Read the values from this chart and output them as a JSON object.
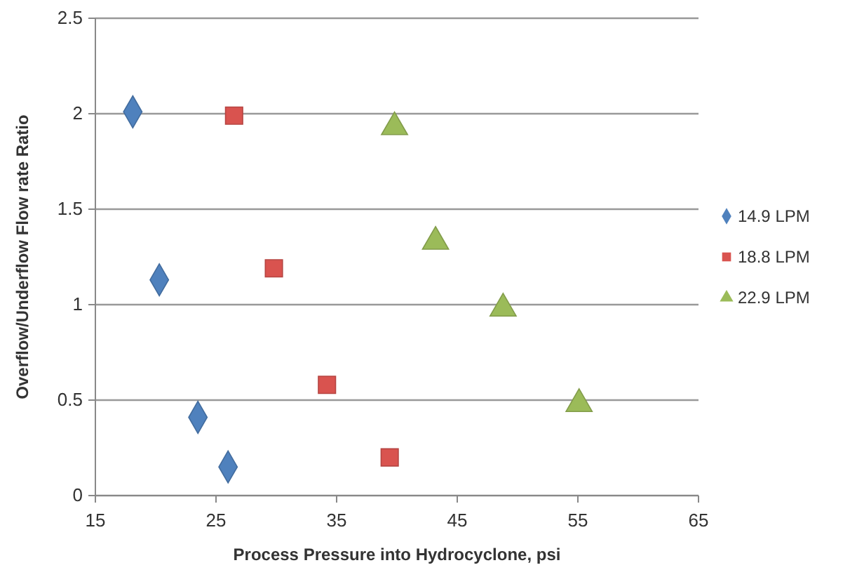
{
  "chart_data": {
    "type": "scatter",
    "xlabel": "Process Pressure into Hydrocyclone, psi",
    "ylabel": "Overflow/Underflow Flow rate Ratio",
    "xlim": [
      15,
      65
    ],
    "xticks": [
      15,
      25,
      35,
      45,
      55,
      65
    ],
    "ylim": [
      0,
      2.5
    ],
    "yticks": [
      0,
      0.5,
      1,
      1.5,
      2,
      2.5
    ],
    "grid": "y",
    "legend": "right",
    "series": [
      {
        "name": "14.9 LPM",
        "color": "#4f81bd",
        "marker": "diamond",
        "x": [
          18.1,
          20.3,
          23.5,
          26.0
        ],
        "values": [
          2.01,
          1.13,
          0.41,
          0.15
        ]
      },
      {
        "name": "18.8 LPM",
        "color": "#d9534f",
        "marker": "square",
        "x": [
          26.5,
          29.8,
          34.2,
          39.4
        ],
        "values": [
          1.99,
          1.19,
          0.58,
          0.2
        ]
      },
      {
        "name": "22.9 LPM",
        "color": "#9bbb59",
        "marker": "triangle",
        "x": [
          39.8,
          43.2,
          48.8,
          55.1
        ],
        "values": [
          1.93,
          1.33,
          0.98,
          0.48
        ]
      }
    ]
  }
}
